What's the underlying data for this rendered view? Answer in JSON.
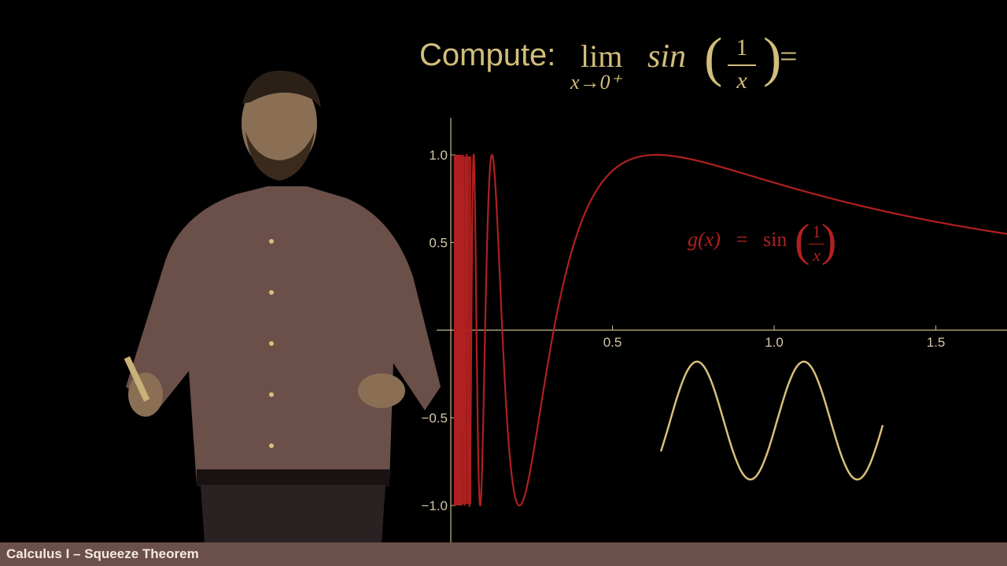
{
  "heading": {
    "compute_label": "Compute:",
    "lim_word": "lim",
    "lim_subscript": "x→0⁺",
    "sin_word": "sin",
    "paren_left": "(",
    "frac_numerator": "1",
    "frac_denominator": "x",
    "paren_right": ")",
    "equals": "="
  },
  "function_label": {
    "lhs": "g(x)",
    "equals": "=",
    "sin": "sin",
    "paren_left": "(",
    "numerator": "1",
    "denominator": "x",
    "paren_right": ")"
  },
  "footer": {
    "title": "Calculus I – Squeeze Theorem"
  },
  "colors": {
    "background": "#000000",
    "heading_text": "#d2bd7c",
    "curve": "#b02020",
    "axis": "#c8b98c",
    "tick_label": "#d2c7a5",
    "sketch": "#d9c07a",
    "footer_bar": "#6b4f49",
    "footer_text": "#f2eadf",
    "presenter_shirt": "#6b4f49"
  },
  "chart_data": {
    "type": "line",
    "function": "sin(1/x)",
    "series": [
      {
        "name": "g(x) = sin(1/x)"
      }
    ],
    "xlim": [
      0,
      1.72
    ],
    "ylim": [
      -1.1,
      1.15
    ],
    "x_ticks": [
      0.5,
      1.0,
      1.5
    ],
    "x_tick_labels": [
      "0.5",
      "1.0",
      "1.5"
    ],
    "y_ticks": [
      1.0,
      0.5,
      -0.5,
      -1.0
    ],
    "y_tick_labels": [
      "1.0",
      "0.5",
      "−0.5",
      "−1.0"
    ],
    "grid": false,
    "sketch": {
      "description": "hand-drawn wave",
      "peaks": 2
    }
  }
}
